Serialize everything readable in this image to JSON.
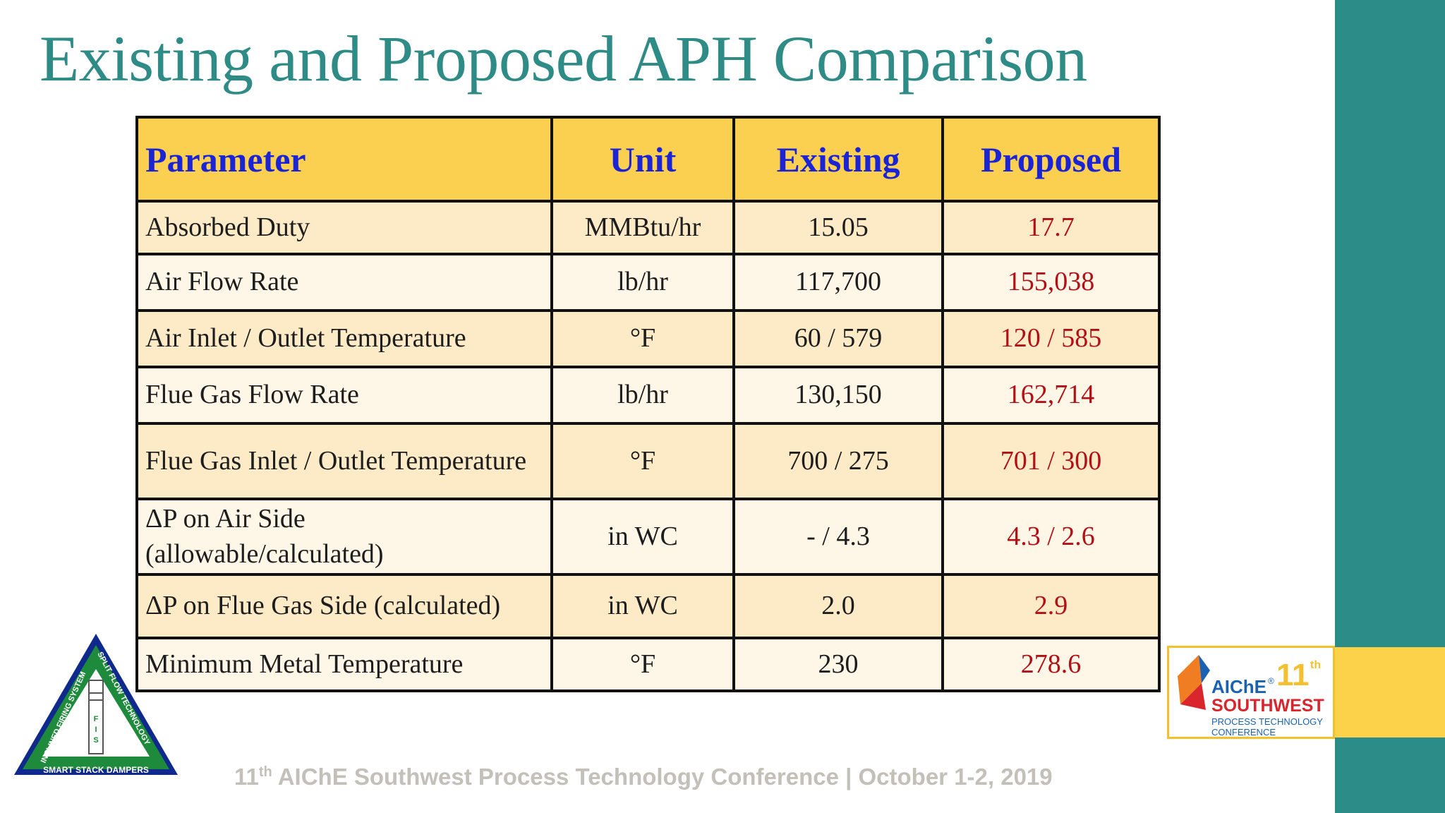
{
  "title": "Existing and Proposed APH Comparison",
  "colors": {
    "teal": "#2b8c88",
    "header_fill": "#fbcf4f",
    "header_text": "#1a24d6",
    "proposed_text": "#b11116",
    "row_odd": "#fdebc8",
    "row_even": "#fef6e6"
  },
  "table": {
    "headers": [
      "Parameter",
      "Unit",
      "Existing",
      "Proposed"
    ],
    "rows": [
      {
        "parameter": "Absorbed Duty",
        "unit": "MMBtu/hr",
        "existing": "15.05",
        "proposed": "17.7"
      },
      {
        "parameter": "Air Flow Rate",
        "unit": "lb/hr",
        "existing": "117,700",
        "proposed": "155,038"
      },
      {
        "parameter": "Air Inlet / Outlet Temperature",
        "unit": "°F",
        "existing": "60 / 579",
        "proposed": "120 / 585"
      },
      {
        "parameter": "Flue Gas Flow Rate",
        "unit": "lb/hr",
        "existing": "130,150",
        "proposed": "162,714"
      },
      {
        "parameter": "Flue Gas Inlet / Outlet Temperature",
        "unit": "°F",
        "existing": "700 / 275",
        "proposed": "701 / 300"
      },
      {
        "parameter": "ΔP on Air Side (allowable/calculated)",
        "unit": "in WC",
        "existing": "- / 4.3",
        "proposed": "4.3 / 2.6"
      },
      {
        "parameter": "ΔP on Flue Gas Side (calculated)",
        "unit": "in WC",
        "existing": "2.0",
        "proposed": "2.9"
      },
      {
        "parameter": "Minimum Metal Temperature",
        "unit": "°F",
        "existing": "230",
        "proposed": "278.6"
      }
    ]
  },
  "fis_logo": {
    "left_text": "INCLINED FIRING SYSTEM",
    "right_text": "SPLIT FLOW TECHNOLOGY",
    "bottom_text": "SMART STACK DAMPERS",
    "letters": [
      "F",
      "I",
      "S"
    ]
  },
  "aiche_logo": {
    "name": "AIChE",
    "reg": "®",
    "number": "11",
    "suffix": "th",
    "region": "SOUTHWEST",
    "line1": "PROCESS TECHNOLOGY",
    "line2": "CONFERENCE"
  },
  "footer": {
    "prefix": "11",
    "sup": "th",
    "text": " AIChE Southwest Process Technology Conference | October 1-2, 2019"
  }
}
